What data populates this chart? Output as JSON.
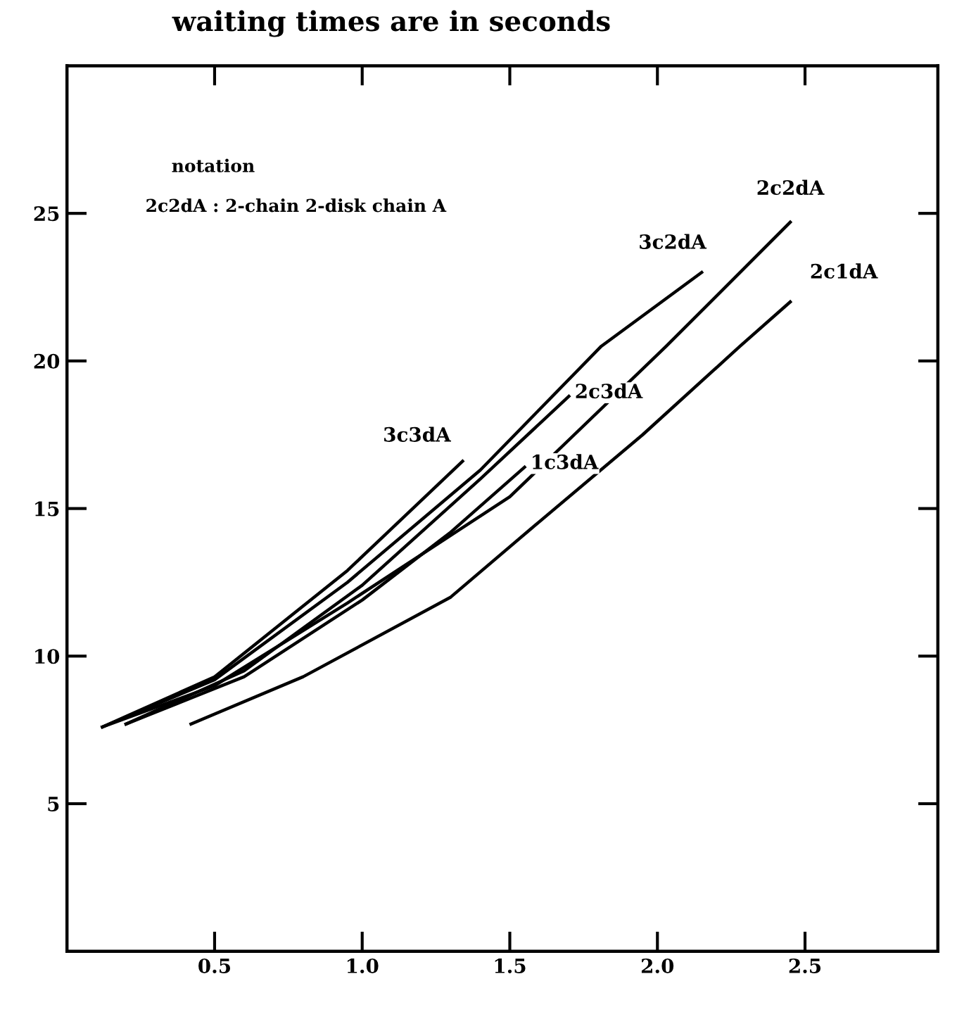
{
  "chart_data": {
    "type": "line",
    "title": "waiting times are in seconds",
    "annotations": [
      "notation",
      "2c2dA : 2-chain 2-disk chain A"
    ],
    "xlim": [
      0,
      2.95
    ],
    "ylim": [
      0,
      30
    ],
    "xticks": [
      0.5,
      {
        "value": 1,
        "label": "1.0"
      },
      1.5,
      {
        "value": 2,
        "label": "2.0"
      },
      2.5
    ],
    "yticks": [
      5,
      10,
      15,
      20,
      25
    ],
    "grid": false,
    "marker": "none",
    "line_style": "solid",
    "series": [
      {
        "name": "2c2dA",
        "color": "#000000",
        "x": [
          0.12,
          0.5,
          0.95,
          1.5,
          2.03,
          2.45
        ],
        "values": [
          7.6,
          9.0,
          11.8,
          15.4,
          20.5,
          24.7
        ]
      },
      {
        "name": "2c1dA",
        "color": "#000000",
        "x": [
          0.42,
          0.8,
          1.3,
          1.57,
          1.95,
          2.28,
          2.45
        ],
        "values": [
          7.7,
          9.3,
          12.0,
          14.3,
          17.5,
          20.5,
          22.0
        ]
      },
      {
        "name": "3c2dA",
        "color": "#000000",
        "x": [
          0.12,
          0.5,
          0.95,
          1.4,
          1.81,
          2.15
        ],
        "values": [
          7.6,
          9.2,
          12.5,
          16.3,
          20.5,
          23.0
        ]
      },
      {
        "name": "3c3dA",
        "color": "#000000",
        "x": [
          0.12,
          0.5,
          0.95,
          1.34
        ],
        "values": [
          7.6,
          9.3,
          12.9,
          16.6
        ]
      },
      {
        "name": "2c3dA",
        "color": "#000000",
        "x": [
          0.2,
          0.6,
          1.0,
          1.4,
          1.7
        ],
        "values": [
          7.7,
          9.5,
          12.4,
          16.0,
          18.8
        ]
      },
      {
        "name": "1c3dA",
        "color": "#000000",
        "x": [
          0.2,
          0.6,
          1.0,
          1.3,
          1.55
        ],
        "values": [
          7.7,
          9.3,
          11.9,
          14.2,
          16.4
        ]
      }
    ]
  }
}
